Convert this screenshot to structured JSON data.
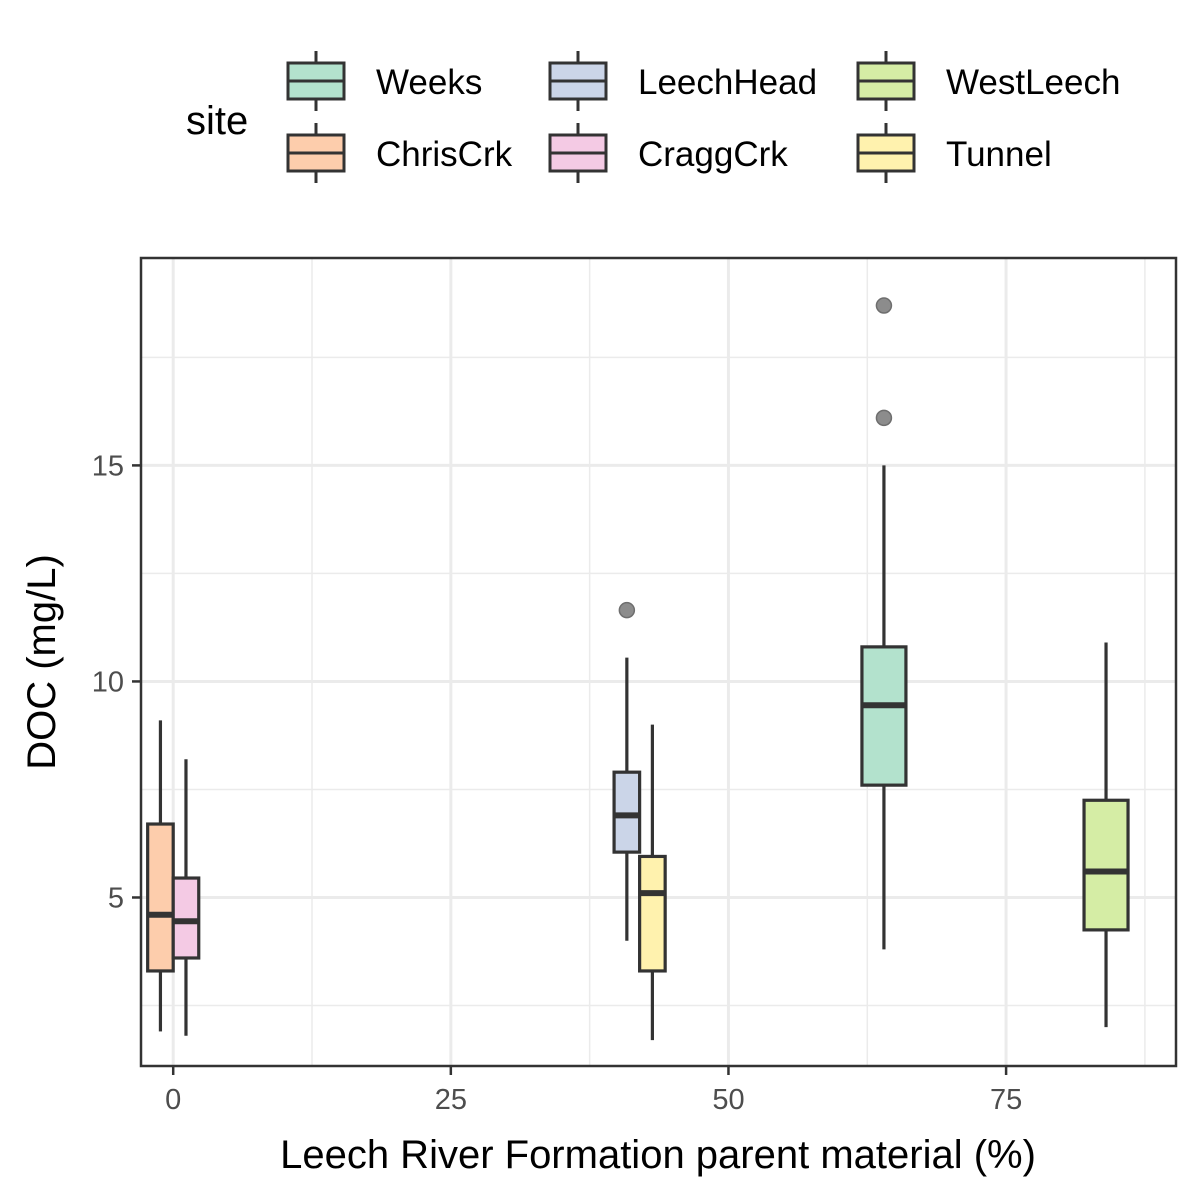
{
  "chart_data": {
    "type": "box",
    "legend": {
      "title": "site",
      "position": "top",
      "entries": [
        {
          "name": "Weeks",
          "color": "#B3E2CD"
        },
        {
          "name": "LeechHead",
          "color": "#CBD5E8"
        },
        {
          "name": "WestLeech",
          "color": "#D5EDA5"
        },
        {
          "name": "ChrisCrk",
          "color": "#FDCDAC"
        },
        {
          "name": "CraggCrk",
          "color": "#F4CAE4"
        },
        {
          "name": "Tunnel",
          "color": "#FFF2AE"
        }
      ]
    },
    "xlabel": "Leech River Formation parent material (%)",
    "ylabel": "DOC (mg/L)",
    "xlim": [
      -2.9,
      90.3
    ],
    "ylim": [
      1.1,
      19.8
    ],
    "x_ticks": [
      0,
      25,
      50,
      75
    ],
    "x_tick_labels": [
      "0",
      "25",
      "50",
      "75"
    ],
    "y_ticks": [
      5,
      10,
      15
    ],
    "y_tick_labels": [
      "5",
      "10",
      "15"
    ],
    "grid": true,
    "series": [
      {
        "name": "ChrisCrk",
        "x": 0,
        "whisker_low": 1.9,
        "q1": 3.3,
        "median": 4.6,
        "q3": 6.7,
        "whisker_high": 9.1,
        "outliers": []
      },
      {
        "name": "CraggCrk",
        "x": 0,
        "whisker_low": 1.8,
        "q1": 3.6,
        "median": 4.45,
        "q3": 5.45,
        "whisker_high": 8.2,
        "outliers": []
      },
      {
        "name": "LeechHead",
        "x": 42,
        "whisker_low": 4.0,
        "q1": 6.05,
        "median": 6.9,
        "q3": 7.9,
        "whisker_high": 10.55,
        "outliers": [
          11.65
        ]
      },
      {
        "name": "Tunnel",
        "x": 42,
        "whisker_low": 1.7,
        "q1": 3.3,
        "median": 5.1,
        "q3": 5.95,
        "whisker_high": 9.0,
        "outliers": []
      },
      {
        "name": "Weeks",
        "x": 64,
        "whisker_low": 3.8,
        "q1": 7.6,
        "median": 9.45,
        "q3": 10.8,
        "whisker_high": 15.0,
        "outliers": [
          16.1,
          18.7
        ]
      },
      {
        "name": "WestLeech",
        "x": 84,
        "whisker_low": 2.0,
        "q1": 4.25,
        "median": 5.6,
        "q3": 7.25,
        "whisker_high": 10.9,
        "outliers": []
      }
    ]
  }
}
